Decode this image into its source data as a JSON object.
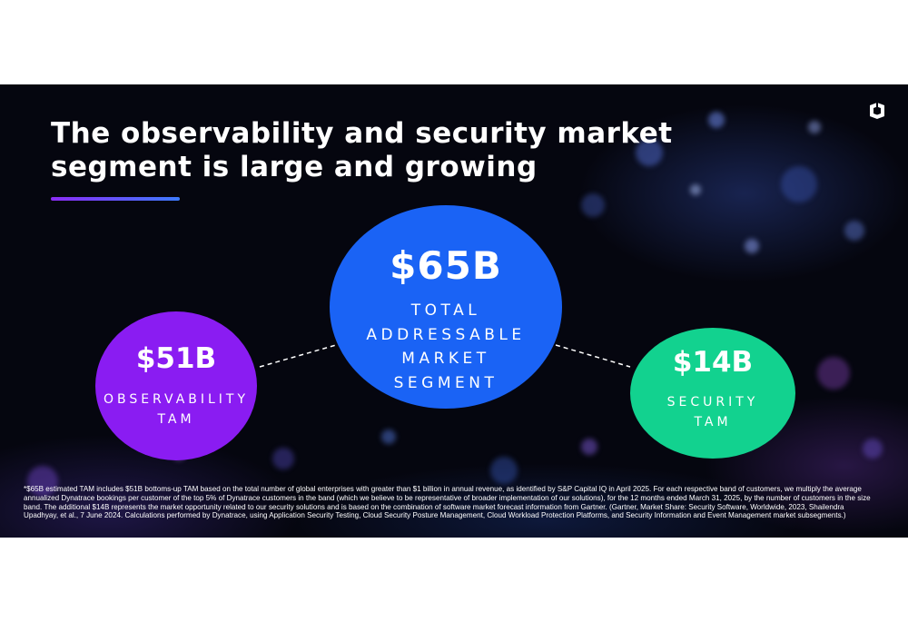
{
  "slide": {
    "title": "The observability and security market\nsegment is large and growing",
    "circles": {
      "observability": {
        "value": "$51B",
        "label_line1": "OBSERVABILITY",
        "label_line2": "TAM",
        "color": "#8a1cf2"
      },
      "total": {
        "value": "$65B",
        "label_line1": "TOTAL",
        "label_line2": "ADDRESSABLE",
        "label_line3": "MARKET",
        "label_line4": "SEGMENT",
        "color": "#1a63f5"
      },
      "security": {
        "value": "$14B",
        "label_line1": "SECURITY",
        "label_line2": "TAM",
        "color": "#12d28f"
      }
    },
    "footnote": "*$65B estimated TAM includes $51B bottoms-up TAM based on the total number of global enterprises with greater than $1 billion in annual revenue, as identified by S&P Capital IQ in April 2025. For each respective band of customers, we multiply the average annualized Dynatrace bookings per customer of the top 5% of Dynatrace customers in the band (which we believe to be representative of broader implementation of our solutions), for the 12 months ended March 31, 2025, by the number of customers in the size band. The additional $14B  represents the market opportunity related to our security solutions and is based on the combination of software market forecast information from Gartner. (Gartner, Market Share: Security Software, Worldwide, 2023, Shailendra Upadhyay, et al., 7 June 2024. Calculations performed by Dynatrace, using Application Security Testing, Cloud Security Posture Management, Cloud Workload Protection Platforms, and Security Information and Event Management market subsegments.)",
    "accent_gradient": [
      "#8b2cf5",
      "#3d7bff"
    ],
    "logo_icon": "dynatrace-logo-icon"
  }
}
